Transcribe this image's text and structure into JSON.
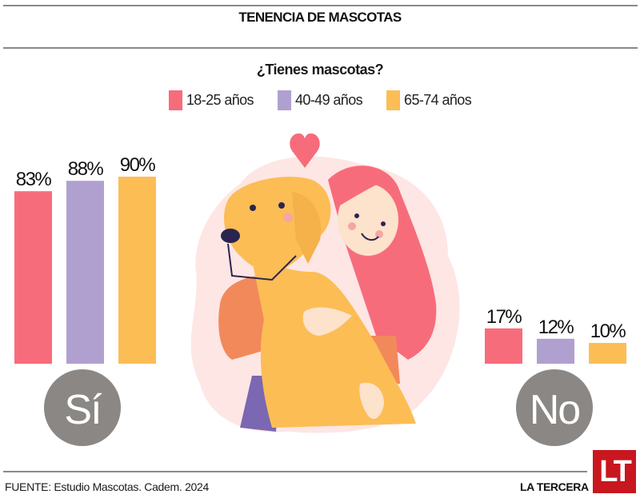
{
  "header": {
    "title": "TENENCIA DE MASCOTAS"
  },
  "colors": {
    "g18_25": "#f76c7b",
    "g40_49": "#b0a0cf",
    "g65_74": "#fcbd55",
    "circle": "#8a8785",
    "logo_bg": "#c8171e"
  },
  "footer": {
    "source": "FUENTE: Estudio Mascotas. Cadem. 2024",
    "brand": "LA TERCERA",
    "logo": "LT"
  },
  "chart_data": {
    "type": "bar",
    "title": "TENENCIA DE MASCOTAS",
    "subtitle": "¿Tienes mascotas?",
    "xlabel": "",
    "ylabel": "",
    "ylim": [
      0,
      100
    ],
    "unit": "%",
    "grid": false,
    "legend_position": "top-center",
    "categories": [
      "Sí",
      "No"
    ],
    "series": [
      {
        "name": "18-25 años",
        "color": "#f76c7b",
        "values": [
          83,
          17
        ]
      },
      {
        "name": "40-49 años",
        "color": "#b0a0cf",
        "values": [
          88,
          12
        ]
      },
      {
        "name": "65-74 años",
        "color": "#fcbd55",
        "values": [
          90,
          10
        ]
      }
    ]
  }
}
